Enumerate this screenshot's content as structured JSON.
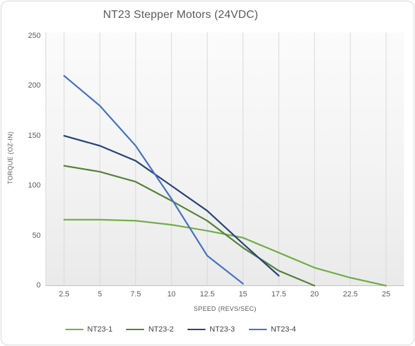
{
  "chart_data": {
    "type": "line",
    "title": "NT23 Stepper Motors (24VDC)",
    "xlabel": "SPEED (REVS/SEC)",
    "ylabel": "TORQUE (OZ-IN)",
    "xlim": [
      2.5,
      25
    ],
    "ylim": [
      0,
      250
    ],
    "x_ticks": [
      2.5,
      5,
      7.5,
      10,
      12.5,
      15,
      17.5,
      20,
      22.5,
      25
    ],
    "y_ticks": [
      0,
      50,
      100,
      150,
      200,
      250
    ],
    "grid": "vertical-only",
    "legend_position": "bottom",
    "series": [
      {
        "name": "NT23-1",
        "color": "#70AD47",
        "x": [
          2.5,
          5,
          7.5,
          10,
          12.5,
          15,
          17.5,
          20,
          22.5,
          25
        ],
        "values": [
          66,
          66,
          65,
          61,
          55,
          48,
          33,
          18,
          8,
          0
        ]
      },
      {
        "name": "NT23-2",
        "color": "#548235",
        "x": [
          2.5,
          5,
          7.5,
          10,
          12.5,
          15,
          17.5,
          20
        ],
        "values": [
          120,
          114,
          104,
          85,
          65,
          38,
          15,
          0
        ]
      },
      {
        "name": "NT23-3",
        "color": "#264478",
        "x": [
          2.5,
          5,
          7.5,
          10,
          12.5,
          15,
          17.5
        ],
        "values": [
          150,
          140,
          125,
          100,
          75,
          42,
          10
        ]
      },
      {
        "name": "NT23-4",
        "color": "#4472C4",
        "x": [
          2.5,
          5,
          7.5,
          10,
          12.5,
          15
        ],
        "values": [
          210,
          180,
          140,
          87,
          30,
          2
        ]
      }
    ]
  }
}
